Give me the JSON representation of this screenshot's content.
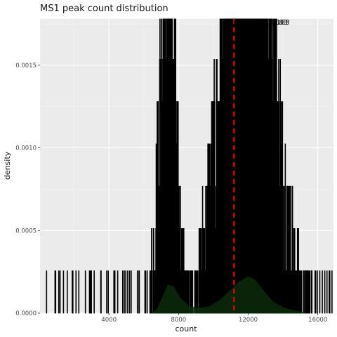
{
  "chart_data": {
    "type": "histogram",
    "title": "MS1 peak count distribution",
    "xlabel": "count",
    "ylabel": "density",
    "xlim": [
      40,
      16900
    ],
    "ylim": [
      0,
      0.00178
    ],
    "x_ticks": [
      4000,
      8000,
      12000,
      16000
    ],
    "x_tick_labels": [
      "4000",
      "8000",
      "12000",
      "16000"
    ],
    "y_ticks": [
      0,
      0.0005,
      0.001,
      0.0015
    ],
    "y_tick_labels": [
      "0.0000",
      "0.0005",
      "0.0010",
      "0.0015"
    ],
    "grid": true,
    "background": "#ebebeb",
    "bar_color": "#000000",
    "density_fill": "#0a2a0a",
    "median": 11183,
    "median_color": "#ff0000",
    "annotation_text": "median=11183",
    "density_curve": {
      "x": [
        6500,
        6800,
        7100,
        7400,
        7700,
        8100,
        8600,
        9200,
        9800,
        10400,
        11000,
        11500,
        12000,
        12400,
        12900,
        13400,
        13900,
        14400,
        14900,
        15300
      ],
      "y": [
        0.0,
        3e-05,
        0.0001,
        0.00017,
        0.00016,
        9e-05,
        4e-05,
        3e-05,
        4e-05,
        8e-05,
        0.00014,
        0.00019,
        0.00022,
        0.0002,
        0.00013,
        7e-05,
        4e-05,
        2e-05,
        1e-05,
        0.0
      ]
    }
  }
}
